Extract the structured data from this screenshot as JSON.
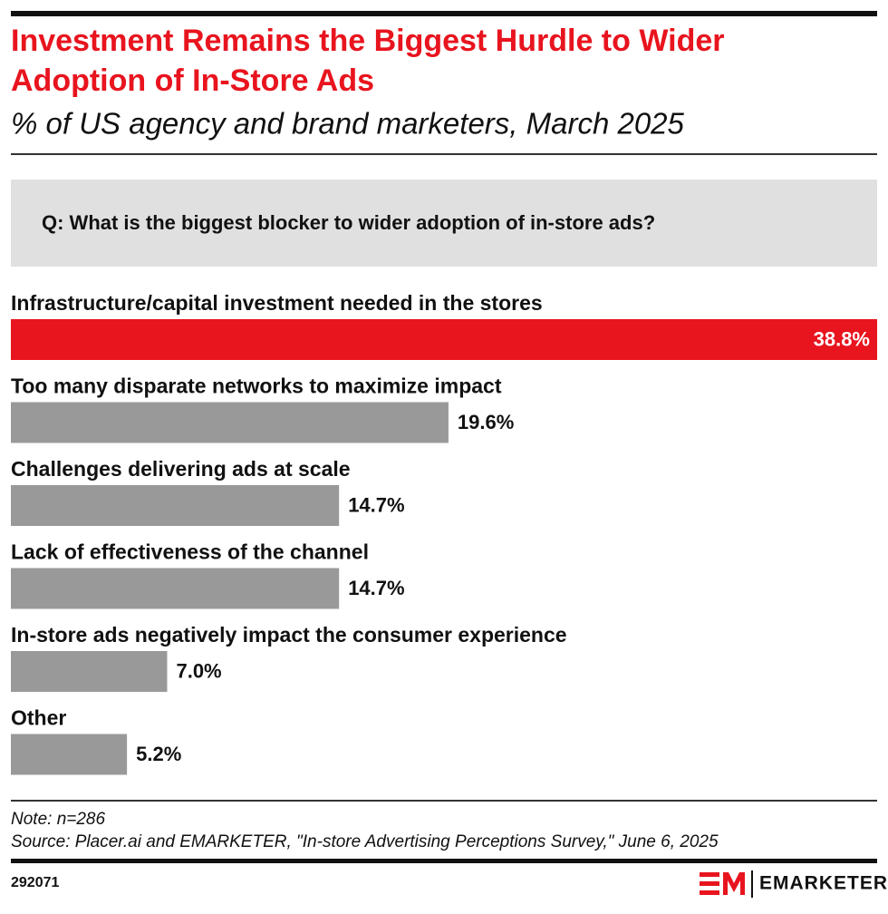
{
  "chart_data": {
    "type": "bar",
    "orientation": "horizontal",
    "title": "Investment Remains the Biggest Hurdle to Wider Adoption of In-Store Ads",
    "subtitle": "% of US agency and brand marketers, March 2025",
    "question": "Q: What is the biggest blocker to wider adoption of in-store ads?",
    "categories": [
      "Infrastructure/capital investment needed in the stores",
      "Too many disparate networks to maximize impact",
      "Challenges delivering ads at scale",
      "Lack of effectiveness of the channel",
      "In-store ads negatively impact the consumer experience",
      "Other"
    ],
    "values": [
      38.8,
      19.6,
      14.7,
      14.7,
      7.0,
      5.2
    ],
    "value_labels": [
      "38.8%",
      "19.6%",
      "14.7%",
      "14.7%",
      "7.0%",
      "5.2%"
    ],
    "colors": [
      "#e8141e",
      "#999999",
      "#999999",
      "#999999",
      "#999999",
      "#999999"
    ],
    "note": "Note: n=286",
    "source": "Source: Placer.ai and EMARKETER, \"In-store Advertising Perceptions Survey,\" June 6, 2025",
    "chart_id": "292071",
    "brand": "EMARKETER"
  }
}
